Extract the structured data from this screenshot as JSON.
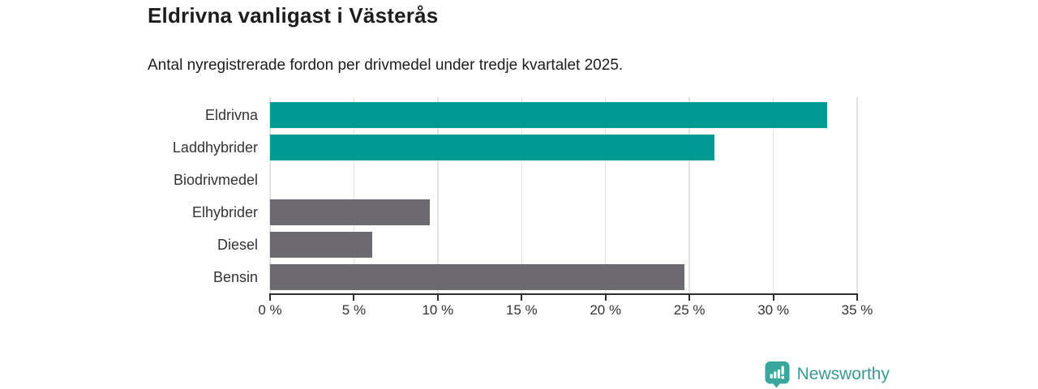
{
  "header": {
    "title": "Eldrivna vanligast i Västerås",
    "subtitle": "Antal nyregistrerade fordon per drivmedel under tredje kvartalet 2025."
  },
  "chart_data": {
    "type": "bar",
    "orientation": "horizontal",
    "categories": [
      "Eldrivna",
      "Laddhybrider",
      "Biodrivmedel",
      "Elhybrider",
      "Diesel",
      "Bensin"
    ],
    "values": [
      33.2,
      26.5,
      0,
      9.5,
      6.1,
      24.7
    ],
    "unit": "%",
    "bar_colors": [
      "#009a93",
      "#009a93",
      "#6c6a70",
      "#6c6a70",
      "#6c6a70",
      "#6c6a70"
    ],
    "highlight_color": "#009a93",
    "default_color": "#6c6a70",
    "xlim": [
      0,
      35
    ],
    "x_ticks": [
      0,
      5,
      10,
      15,
      20,
      25,
      30,
      35
    ],
    "x_tick_labels": [
      "0 %",
      "5 %",
      "10 %",
      "15 %",
      "20 %",
      "25 %",
      "30 %",
      "35 %"
    ],
    "grid": "vertical-only",
    "legend": "none",
    "title": "Eldrivna vanligast i Västerås",
    "xlabel": "",
    "ylabel": ""
  },
  "footer": {
    "brand": "Newsworthy",
    "brand_color": "#3a9a93",
    "logo_icon": "bar-chart-speech-bubble-icon",
    "logo_badge_color": "#3aa79d"
  }
}
